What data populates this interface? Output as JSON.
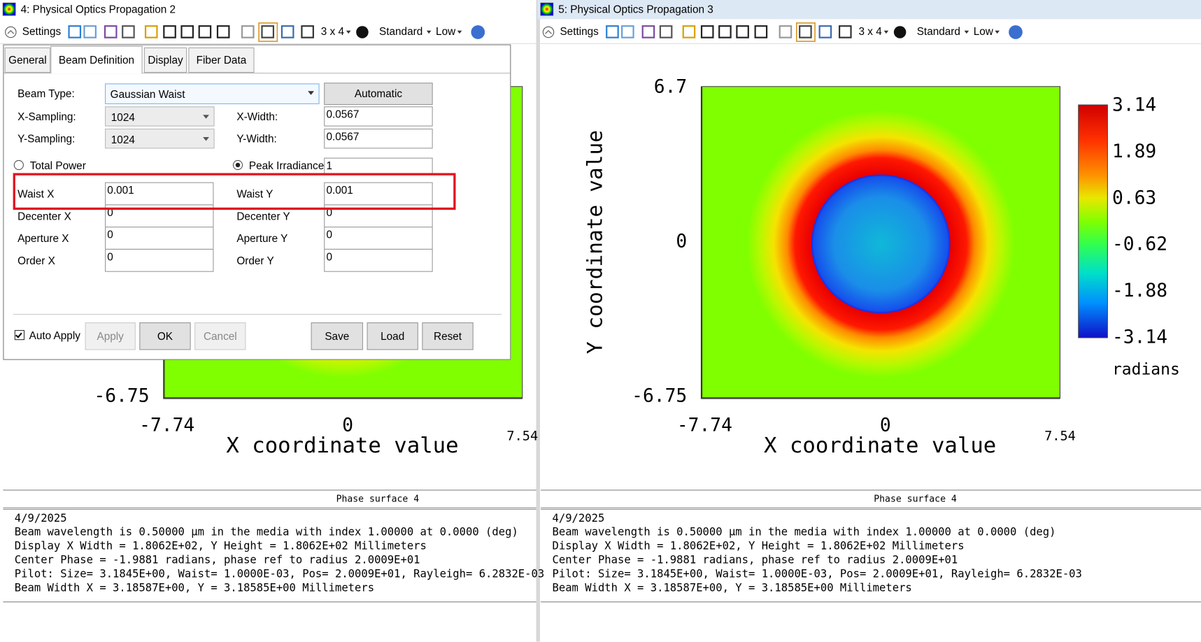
{
  "windows": [
    {
      "title": "4: Physical Optics Propagation 2",
      "toolbar": {
        "settings": "Settings",
        "layout": "3 x 4",
        "standard": "Standard",
        "low": "Low"
      },
      "plot": {
        "y_bottom": "-6.75",
        "x_left": "-7.74",
        "x_mid": "0",
        "x_right": "7.54",
        "x_label": "X coordinate value"
      },
      "report": {
        "header": "Phase surface 4",
        "lines": [
          "4/9/2025",
          "Beam wavelength is 0.50000 µm in the media with index 1.00000 at 0.0000 (deg)",
          "Display X Width = 1.8062E+02, Y Height = 1.8062E+02 Millimeters",
          "Center Phase = -1.9881 radians, phase ref to radius 2.0009E+01",
          "Pilot: Size= 3.1845E+00, Waist= 1.0000E-03, Pos= 2.0009E+01, Rayleigh= 6.2832E-03",
          "Beam Width X = 3.18587E+00, Y = 3.18585E+00 Millimeters"
        ]
      }
    },
    {
      "title": "5: Physical Optics Propagation 3",
      "toolbar": {
        "settings": "Settings",
        "layout": "3 x 4",
        "standard": "Standard",
        "low": "Low"
      },
      "plot": {
        "y_top": "6.7",
        "y_mid": "0",
        "y_bottom": "-6.75",
        "x_left": "-7.74",
        "x_mid": "0",
        "x_right": "7.54",
        "x_label": "X coordinate value",
        "y_label": "Y coordinate value",
        "colorbar": {
          "ticks": [
            "3.14",
            "1.89",
            "0.63",
            "-0.62",
            "-1.88",
            "-3.14"
          ],
          "unit": "radians"
        }
      },
      "report": {
        "header": "Phase surface 4",
        "lines": [
          "4/9/2025",
          "Beam wavelength is 0.50000 µm in the media with index 1.00000 at 0.0000 (deg)",
          "Display X Width = 1.8062E+02, Y Height = 1.8062E+02 Millimeters",
          "Center Phase = -1.9881 radians, phase ref to radius 2.0009E+01",
          "Pilot: Size= 3.1845E+00, Waist= 1.0000E-03, Pos= 2.0009E+01, Rayleigh= 6.2832E-03",
          "Beam Width X = 3.18587E+00, Y = 3.18585E+00 Millimeters"
        ]
      }
    }
  ],
  "dialog": {
    "tabs": [
      "General",
      "Beam Definition",
      "Display",
      "Fiber Data"
    ],
    "beam_type_label": "Beam Type:",
    "beam_type": "Gaussian Waist",
    "automatic": "Automatic",
    "left_fields": [
      {
        "label": "X-Sampling:",
        "value": "1024"
      },
      {
        "label": "Y-Sampling:",
        "value": "1024"
      },
      {
        "label": "Waist X",
        "value": "0.001"
      },
      {
        "label": "Decenter X",
        "value": "0"
      },
      {
        "label": "Aperture X",
        "value": "0"
      },
      {
        "label": "Order X",
        "value": "0"
      }
    ],
    "right_fields": [
      {
        "label": "X-Width:",
        "value": "0.0567"
      },
      {
        "label": "Y-Width:",
        "value": "0.0567"
      },
      {
        "label": "Waist Y",
        "value": "0.001"
      },
      {
        "label": "Decenter Y",
        "value": "0"
      },
      {
        "label": "Aperture Y",
        "value": "0"
      },
      {
        "label": "Order Y",
        "value": "0"
      }
    ],
    "total_power": "Total Power",
    "peak_irradiance": "Peak Irradiance",
    "peak_value": "1",
    "auto_apply": "Auto Apply",
    "buttons": [
      "Apply",
      "OK",
      "Cancel",
      "Save",
      "Load",
      "Reset"
    ]
  }
}
